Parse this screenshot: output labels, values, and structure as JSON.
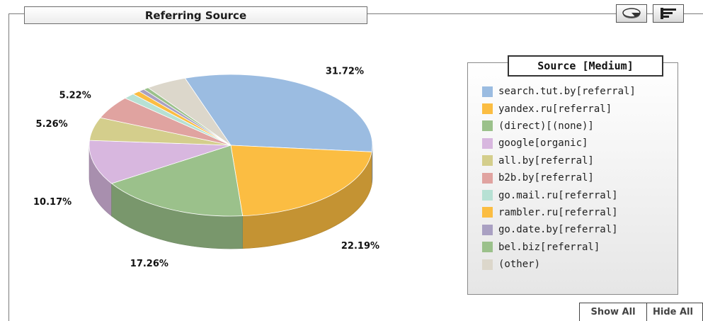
{
  "panel": {
    "title": "Referring Source",
    "view_buttons": [
      {
        "icon": "pie-chart-icon"
      },
      {
        "icon": "bar-chart-icon"
      }
    ]
  },
  "chart_data": {
    "type": "pie",
    "title": "Referring Source",
    "legend_title": "Source [Medium]",
    "legend_placement": "right",
    "slices": [
      {
        "label": "search.tut.by[referral]",
        "value": 31.72,
        "display": "31.72%",
        "color": "#9bbce1"
      },
      {
        "label": "yandex.ru[referral]",
        "value": 22.19,
        "display": "22.19%",
        "color": "#fbbd42"
      },
      {
        "label": "(direct)[(none)]",
        "value": 17.26,
        "display": "17.26%",
        "color": "#9bc18b"
      },
      {
        "label": "google[organic]",
        "value": 10.17,
        "display": "10.17%",
        "color": "#d8b7df"
      },
      {
        "label": "all.by[referral]",
        "value": 5.26,
        "display": "5.26%",
        "color": "#d4ce8c"
      },
      {
        "label": "b2b.by[referral]",
        "value": 5.22,
        "display": "5.22%",
        "color": "#e0a3a0"
      },
      {
        "label": "go.mail.ru[referral]",
        "value": 1.3,
        "display": "",
        "color": "#b7e1d4"
      },
      {
        "label": "rambler.ru[referral]",
        "value": 0.9,
        "display": "",
        "color": "#fbbd42"
      },
      {
        "label": "go.date.by[referral]",
        "value": 0.7,
        "display": "",
        "color": "#a9a0c2"
      },
      {
        "label": "bel.biz[referral]",
        "value": 0.6,
        "display": "",
        "color": "#9bc18b"
      },
      {
        "label": "(other)",
        "value": 4.68,
        "display": "",
        "color": "#dcd7cb"
      }
    ]
  },
  "footer": {
    "show_all": "Show All",
    "hide_all": "Hide All"
  }
}
